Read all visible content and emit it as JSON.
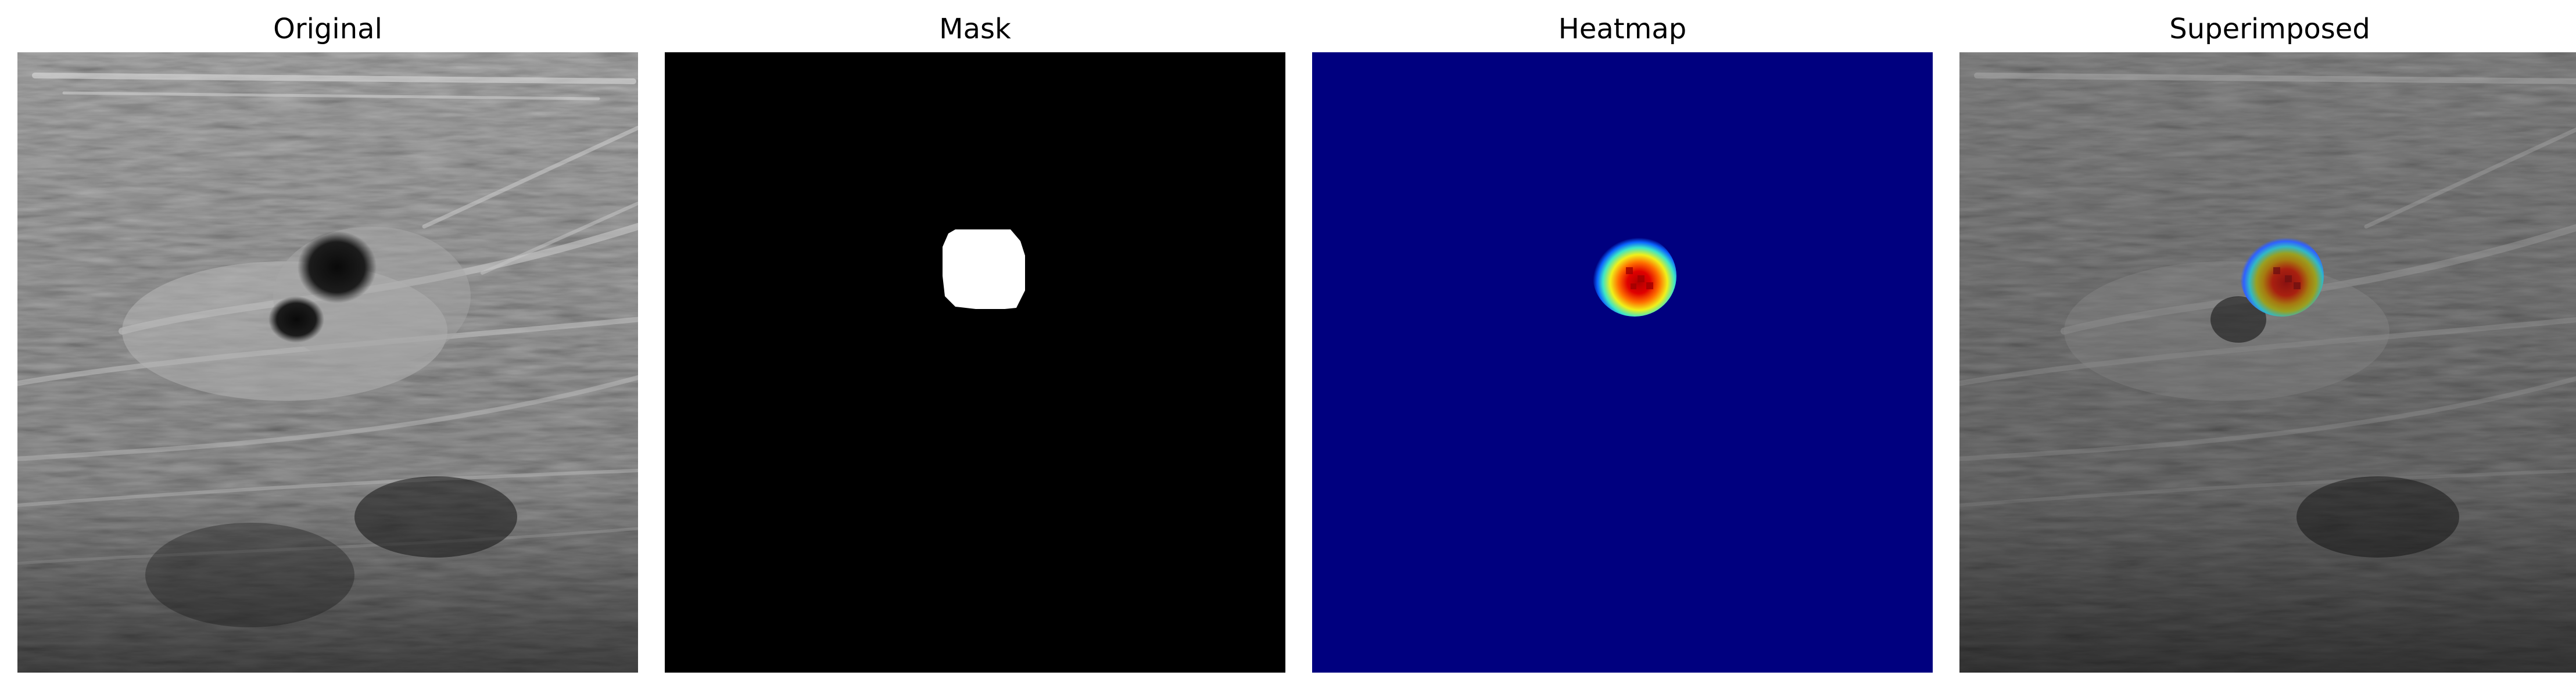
{
  "figure": {
    "panels": [
      {
        "title": "Original"
      },
      {
        "title": "Mask"
      },
      {
        "title": "Heatmap"
      },
      {
        "title": "Superimposed"
      }
    ]
  },
  "colors": {
    "background": "#ffffff",
    "mask_background": "#000000",
    "mask_foreground": "#ffffff",
    "heatmap_background": "#00007f",
    "heatmap_cyan": "#14cde6",
    "heatmap_yellow": "#f0f01a",
    "heatmap_orange": "#ff6a00",
    "heatmap_red": "#c00000"
  }
}
